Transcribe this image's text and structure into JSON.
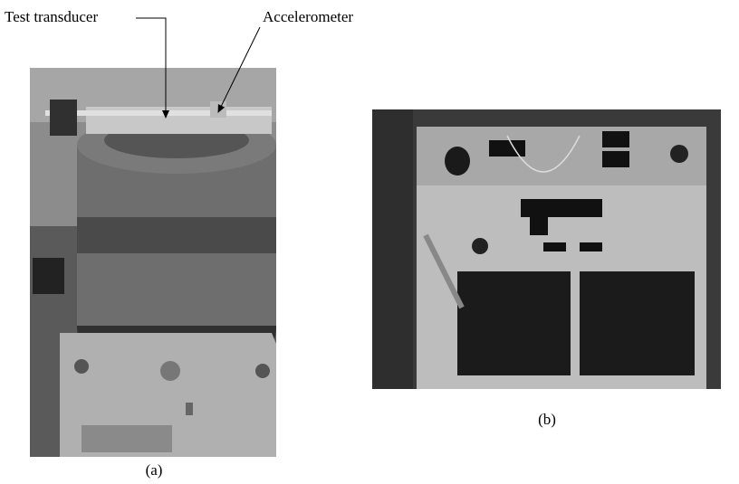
{
  "figure": {
    "callouts": [
      "Test transducer",
      "Accelerometer"
    ],
    "panels": [
      {
        "label": "(a)"
      },
      {
        "label": "(b)"
      }
    ]
  }
}
